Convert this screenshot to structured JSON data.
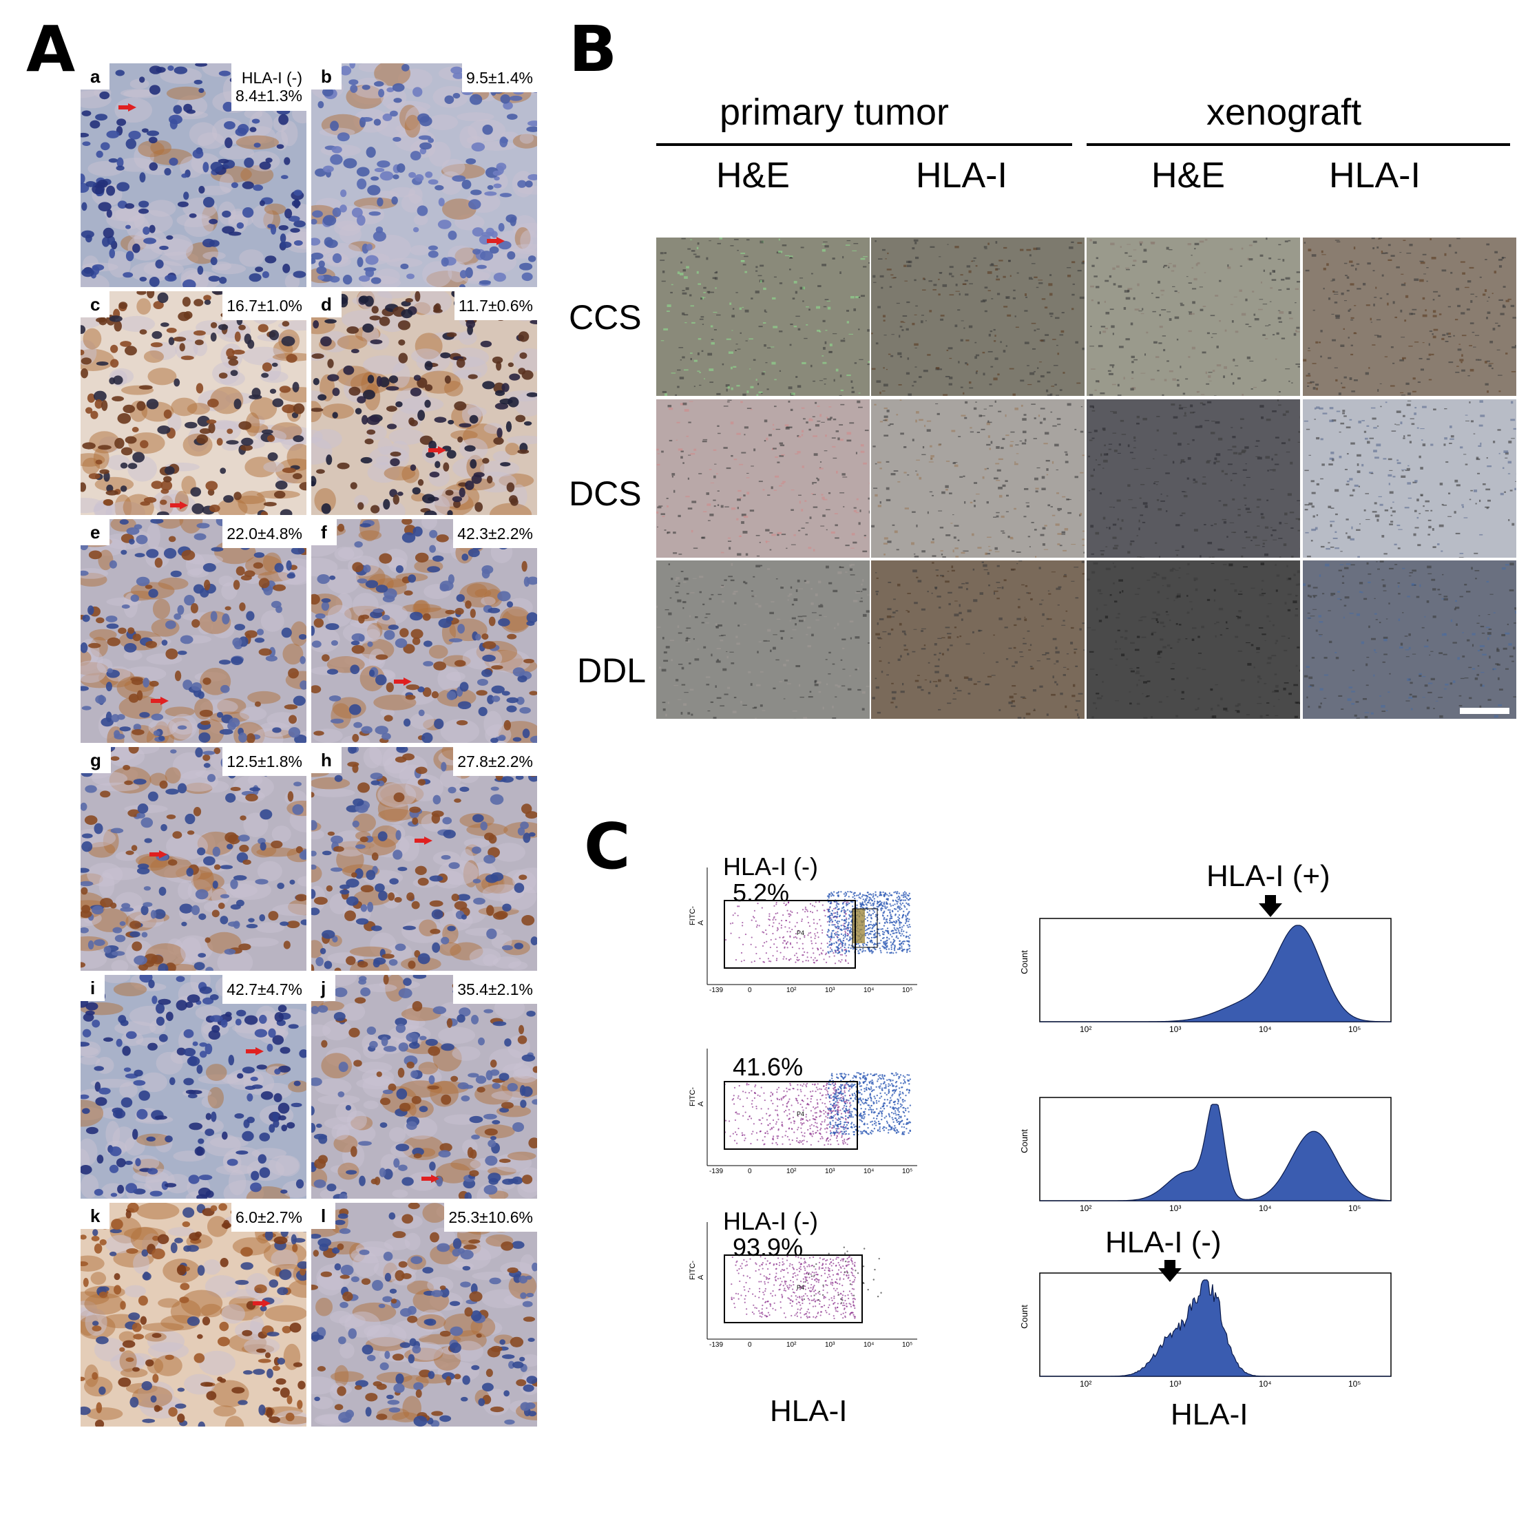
{
  "panels": {
    "a": "A",
    "b": "B",
    "c": "C"
  },
  "panel_a": {
    "tiles": [
      {
        "label": "a",
        "value": "HLA-I (-)\n8.4±1.3%",
        "tone": "blue"
      },
      {
        "label": "b",
        "value": "9.5±1.4%",
        "tone": "lightblue"
      },
      {
        "label": "c",
        "value": "16.7±1.0%",
        "tone": "brownlight"
      },
      {
        "label": "d",
        "value": "11.7±0.6%",
        "tone": "dark"
      },
      {
        "label": "e",
        "value": "22.0±4.8%",
        "tone": "mixed"
      },
      {
        "label": "f",
        "value": "42.3±2.2%",
        "tone": "mixed"
      },
      {
        "label": "g",
        "value": "12.5±1.8%",
        "tone": "mixed"
      },
      {
        "label": "h",
        "value": "27.8±2.2%",
        "tone": "mixed"
      },
      {
        "label": "i",
        "value": "42.7±4.7%",
        "tone": "blue"
      },
      {
        "label": "j",
        "value": "35.4±2.1%",
        "tone": "mixed"
      },
      {
        "label": "k",
        "value": "6.0±2.7%",
        "tone": "brown"
      },
      {
        "label": "l",
        "value": "25.3±10.6%",
        "tone": "mixed"
      }
    ]
  },
  "panel_b": {
    "group_primary": "primary tumor",
    "group_xeno": "xenograft",
    "columns": [
      "H&E",
      "HLA-I",
      "H&E",
      "HLA-I"
    ],
    "rows": [
      "CCS",
      "DCS",
      "DDL"
    ]
  },
  "panel_c": {
    "scatter": [
      {
        "top_label": "HLA-I (-)",
        "percent": "5.2%",
        "gate": "P4"
      },
      {
        "top_label": "",
        "percent": "41.6%",
        "gate": "P4"
      },
      {
        "top_label": "HLA-I (-)",
        "percent": "93.9%",
        "gate": "P4"
      }
    ],
    "scatter_y_axis": "FITC-A",
    "scatter_x_label": "HLA-I",
    "hist_y_axis": "Count",
    "hist_top_label": "HLA-I (+)",
    "hist_bottom_label": "HLA-I (-)",
    "hist_x_label": "HLA-I",
    "x_ticks": [
      "10²",
      "10³",
      "10⁴",
      "10⁵"
    ],
    "scatter_x_ticks": [
      "-139",
      "0",
      "10²",
      "10³",
      "10⁴",
      "10⁵"
    ]
  },
  "colors": {
    "hist_fill": "#3a5cb0",
    "scatter_blue": "#2f5bb5",
    "scatter_purple": "#8a2f8c",
    "arrow_red": "#e02020"
  }
}
